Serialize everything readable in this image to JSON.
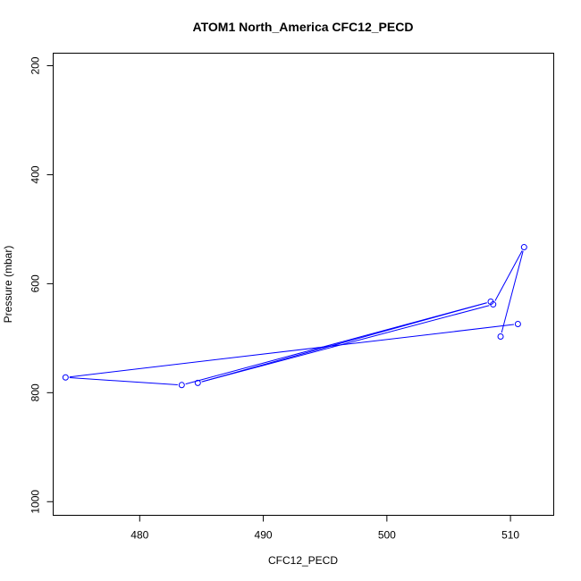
{
  "chart_data": {
    "type": "line",
    "title": "ATOM1 North_America CFC12_PECD",
    "xlabel": "CFC12_PECD",
    "ylabel": "Pressure (mbar)",
    "xlim": [
      473,
      513.5
    ],
    "ylim": [
      1025,
      177
    ],
    "y_reversed": true,
    "xticks": [
      480,
      490,
      500,
      510
    ],
    "yticks": [
      200,
      400,
      600,
      800,
      1000
    ],
    "grid": false,
    "series_color": "#0000ff",
    "points": [
      {
        "x": 510.6,
        "y": 674
      },
      {
        "x": 474.0,
        "y": 772
      },
      {
        "x": 483.4,
        "y": 786
      },
      {
        "x": 508.4,
        "y": 633
      },
      {
        "x": 484.7,
        "y": 782
      },
      {
        "x": 508.6,
        "y": 638
      },
      {
        "x": 511.1,
        "y": 533
      },
      {
        "x": 509.2,
        "y": 697
      }
    ]
  }
}
